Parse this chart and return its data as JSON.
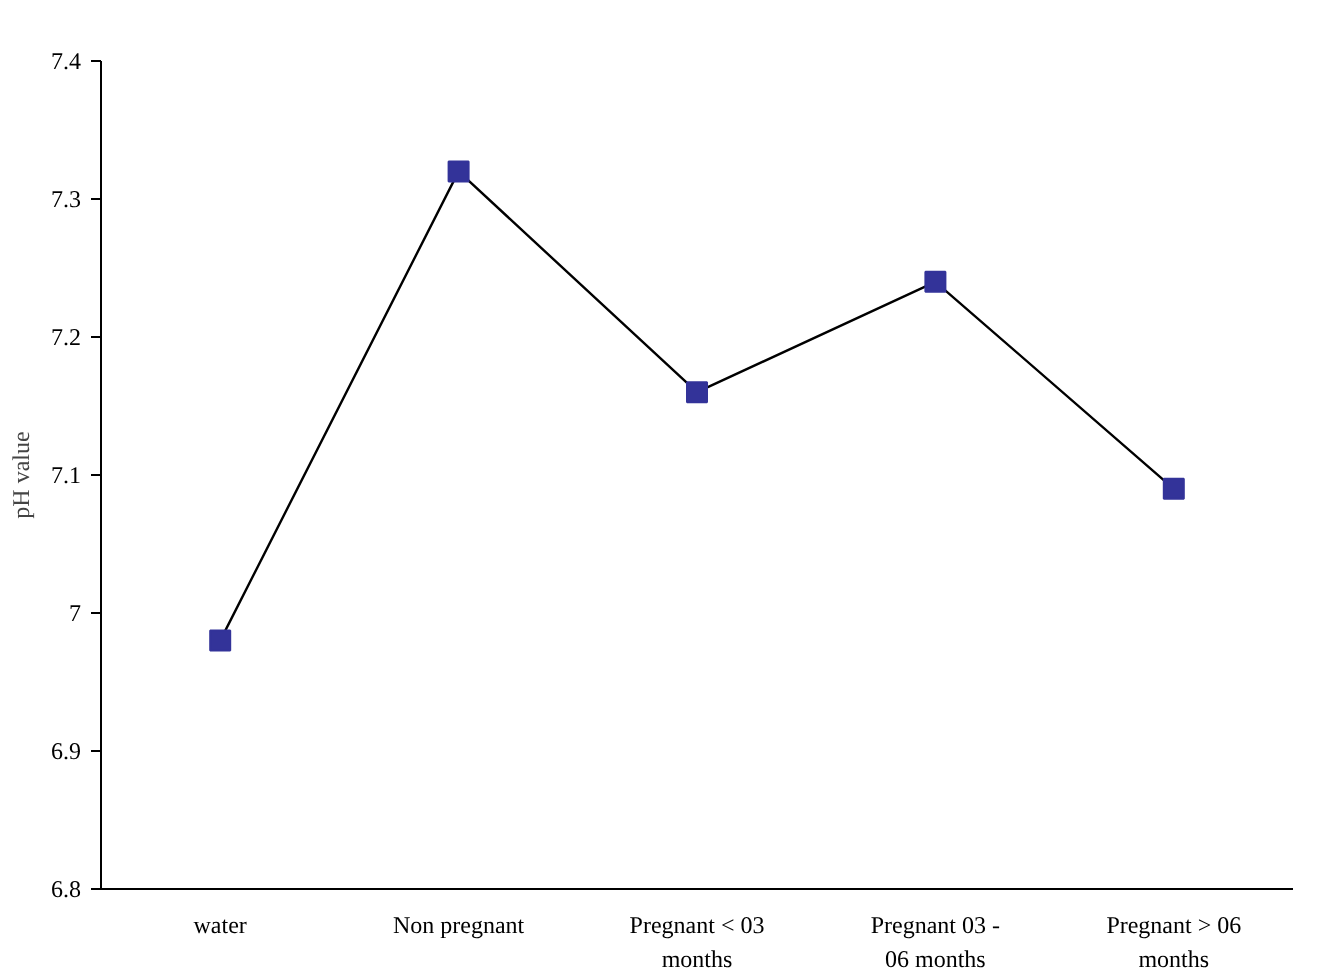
{
  "chart_data": {
    "type": "line",
    "ylabel": "pH value",
    "categories": [
      "water",
      "Non pregnant",
      "Pregnant < 03 months",
      "Pregnant 03 - 06 months",
      "Pregnant > 06 months"
    ],
    "series": [
      {
        "color": "#000000",
        "values": [
          6.98,
          7.32,
          7.16,
          7.24,
          7.09
        ]
      }
    ],
    "marker": "square",
    "ylim": [
      6.8,
      7.4
    ],
    "yticks": [
      6.8,
      6.9,
      {
        "value": 7.0,
        "label": "7"
      },
      7.1,
      7.2,
      7.3,
      7.4
    ],
    "grid": false
  }
}
